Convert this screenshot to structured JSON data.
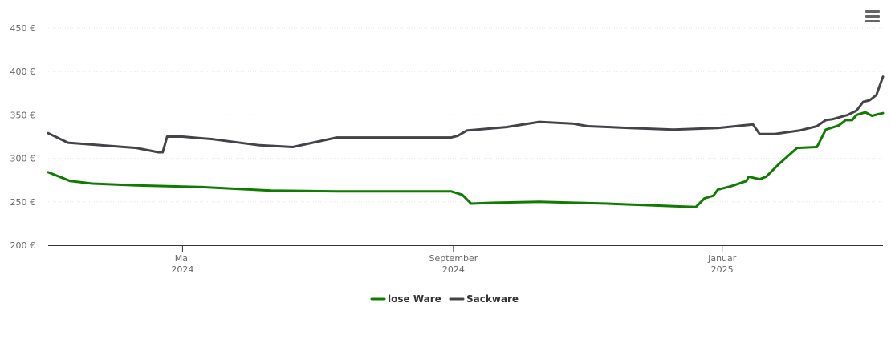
{
  "chart_data": {
    "type": "line",
    "title": "",
    "xlabel": "",
    "ylabel": "",
    "ylim": [
      200,
      450
    ],
    "yticks": [
      200,
      250,
      300,
      350,
      400,
      450
    ],
    "ytick_suffix": " €",
    "xlim": [
      "2024-03-01",
      "2025-03-15"
    ],
    "xticks": [
      {
        "date": "2024-05-01",
        "label": "Mai",
        "year": "2024"
      },
      {
        "date": "2024-09-01",
        "label": "September",
        "year": "2024"
      },
      {
        "date": "2025-01-01",
        "label": "Januar",
        "year": "2025"
      }
    ],
    "grid": true,
    "legend_position": "bottom-center",
    "series": [
      {
        "name": "lose Ware",
        "color": "#117a00",
        "points": [
          [
            "2024-03-01",
            284
          ],
          [
            "2024-03-11",
            274
          ],
          [
            "2024-03-21",
            271
          ],
          [
            "2024-04-10",
            269
          ],
          [
            "2024-05-10",
            267
          ],
          [
            "2024-06-10",
            263
          ],
          [
            "2024-07-10",
            262
          ],
          [
            "2024-08-31",
            262
          ],
          [
            "2024-09-05",
            258
          ],
          [
            "2024-09-09",
            248
          ],
          [
            "2024-09-20",
            249
          ],
          [
            "2024-10-10",
            250
          ],
          [
            "2024-11-10",
            248
          ],
          [
            "2024-12-10",
            245
          ],
          [
            "2024-12-20",
            244
          ],
          [
            "2024-12-24",
            254
          ],
          [
            "2024-12-28",
            257
          ],
          [
            "2024-12-30",
            264
          ],
          [
            "2025-01-05",
            268
          ],
          [
            "2025-01-12",
            274
          ],
          [
            "2025-01-13",
            279
          ],
          [
            "2025-01-18",
            276
          ],
          [
            "2025-01-21",
            279
          ],
          [
            "2025-01-27",
            294
          ],
          [
            "2025-02-04",
            312
          ],
          [
            "2025-02-13",
            313
          ],
          [
            "2025-02-17",
            333
          ],
          [
            "2025-02-23",
            338
          ],
          [
            "2025-02-26",
            344
          ],
          [
            "2025-03-01",
            344
          ],
          [
            "2025-03-03",
            350
          ],
          [
            "2025-03-07",
            353
          ],
          [
            "2025-03-10",
            349
          ],
          [
            "2025-03-13",
            351
          ],
          [
            "2025-03-15",
            352
          ]
        ]
      },
      {
        "name": "Sackware",
        "color": "#434348",
        "points": [
          [
            "2024-03-01",
            329
          ],
          [
            "2024-03-10",
            318
          ],
          [
            "2024-03-25",
            315
          ],
          [
            "2024-04-10",
            312
          ],
          [
            "2024-04-20",
            307
          ],
          [
            "2024-04-22",
            307
          ],
          [
            "2024-04-24",
            325
          ],
          [
            "2024-05-01",
            325
          ],
          [
            "2024-05-15",
            322
          ],
          [
            "2024-06-05",
            315
          ],
          [
            "2024-06-20",
            313
          ],
          [
            "2024-07-10",
            324
          ],
          [
            "2024-08-31",
            324
          ],
          [
            "2024-09-03",
            326
          ],
          [
            "2024-09-07",
            332
          ],
          [
            "2024-09-25",
            336
          ],
          [
            "2024-10-10",
            342
          ],
          [
            "2024-10-25",
            340
          ],
          [
            "2024-11-01",
            337
          ],
          [
            "2024-11-20",
            335
          ],
          [
            "2024-12-10",
            333
          ],
          [
            "2024-12-30",
            335
          ],
          [
            "2025-01-15",
            339
          ],
          [
            "2025-01-18",
            328
          ],
          [
            "2025-01-25",
            328
          ],
          [
            "2025-02-05",
            332
          ],
          [
            "2025-02-13",
            337
          ],
          [
            "2025-02-17",
            344
          ],
          [
            "2025-02-20",
            345
          ],
          [
            "2025-02-27",
            350
          ],
          [
            "2025-03-03",
            355
          ],
          [
            "2025-03-06",
            365
          ],
          [
            "2025-03-09",
            367
          ],
          [
            "2025-03-12",
            373
          ],
          [
            "2025-03-15",
            394
          ]
        ]
      }
    ]
  },
  "menu": {
    "icon": "hamburger-menu-icon"
  }
}
